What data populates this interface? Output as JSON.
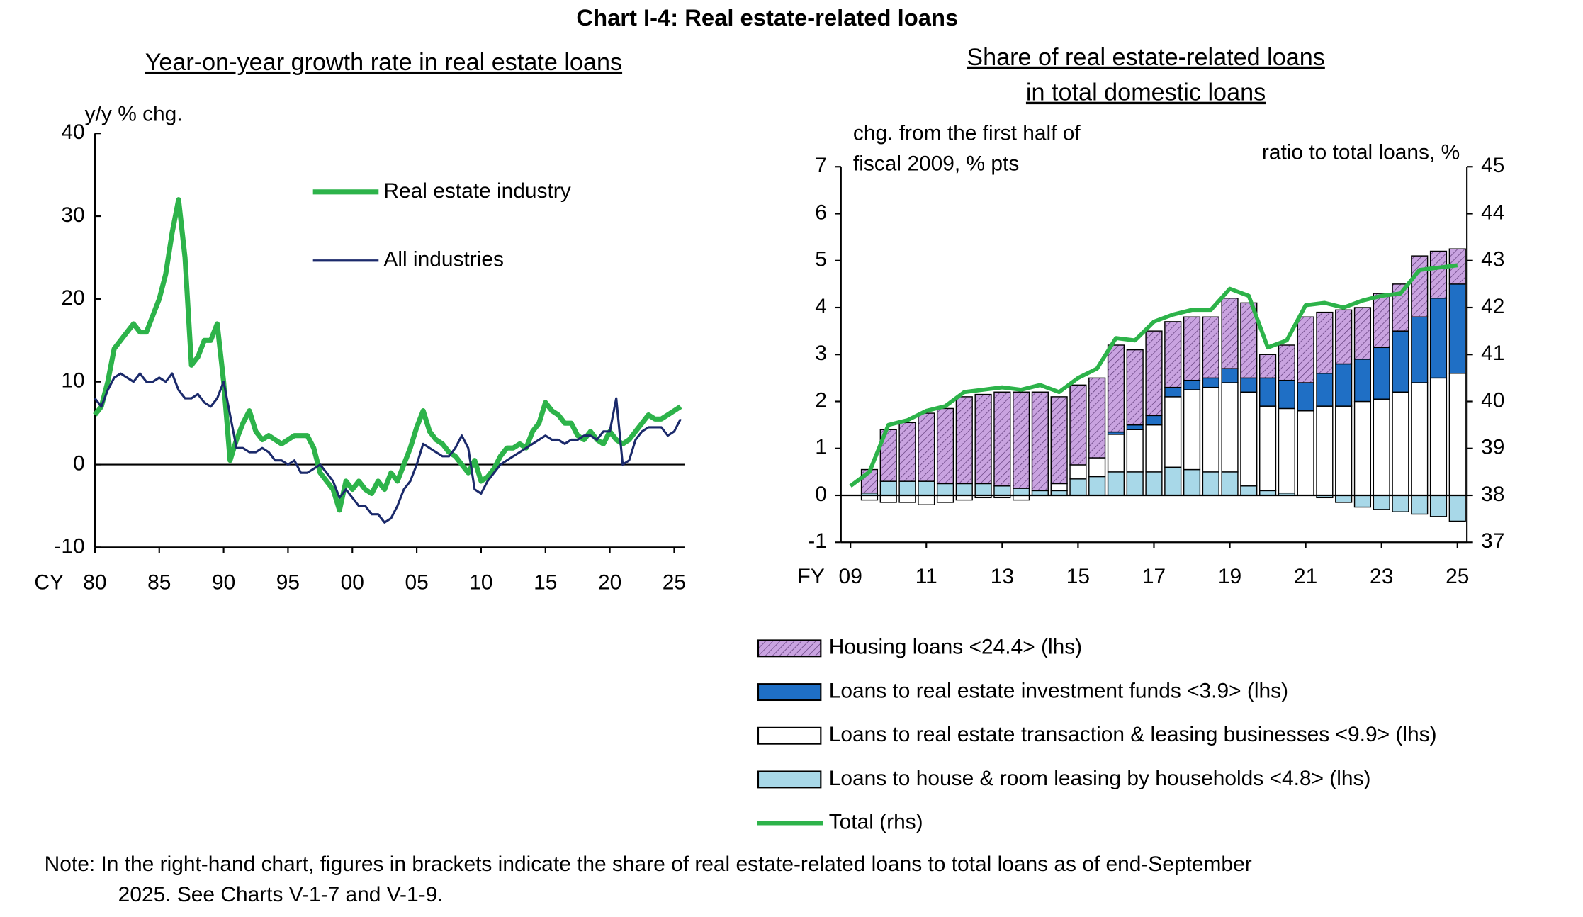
{
  "title": "Chart I-4: Real estate-related loans",
  "note": [
    "Note: In the right-hand chart, figures in brackets indicate the share of real estate-related loans to total loans as of end-September",
    "2025. See Charts V-1-7 and V-1-9."
  ],
  "chart_data": [
    {
      "type": "line",
      "title": "Year-on-year growth rate in real estate loans",
      "y_label": "y/y % chg.",
      "x_label": "CY",
      "x": [
        1980,
        1980.5,
        1981,
        1981.5,
        1982,
        1982.5,
        1983,
        1983.5,
        1984,
        1984.5,
        1985,
        1985.5,
        1986,
        1986.5,
        1987,
        1987.5,
        1988,
        1988.5,
        1989,
        1989.5,
        1990,
        1990.5,
        1991,
        1991.5,
        1992,
        1992.5,
        1993,
        1993.5,
        1994,
        1994.5,
        1995,
        1995.5,
        1996,
        1996.5,
        1997,
        1997.5,
        1998,
        1998.5,
        1999,
        1999.5,
        2000,
        2000.5,
        2001,
        2001.5,
        2002,
        2002.5,
        2003,
        2003.5,
        2004,
        2004.5,
        2005,
        2005.5,
        2006,
        2006.5,
        2007,
        2007.5,
        2008,
        2008.5,
        2009,
        2009.5,
        2010,
        2010.5,
        2011,
        2011.5,
        2012,
        2012.5,
        2013,
        2013.5,
        2014,
        2014.5,
        2015,
        2015.5,
        2016,
        2016.5,
        2017,
        2017.5,
        2018,
        2018.5,
        2019,
        2019.5,
        2020,
        2020.5,
        2021,
        2021.5,
        2022,
        2022.5,
        2023,
        2023.5,
        2024,
        2024.5,
        2025,
        2025.5
      ],
      "series": [
        {
          "name": "Real estate industry",
          "color": "#2db34a",
          "width": 5,
          "values": [
            6,
            7,
            10,
            14,
            15,
            16,
            17,
            16,
            16,
            18,
            20,
            23,
            28,
            32,
            25,
            12,
            13,
            15,
            15,
            17,
            10,
            0.5,
            3,
            5,
            6.5,
            4,
            3,
            3.5,
            3,
            2.5,
            3,
            3.5,
            3.5,
            3.5,
            2,
            -1,
            -2,
            -3,
            -5.5,
            -2,
            -3,
            -2,
            -3,
            -3.5,
            -2,
            -3,
            -1,
            -2,
            0,
            2,
            4.5,
            6.5,
            4,
            3,
            2.5,
            1.5,
            1,
            0,
            -1,
            0.5,
            -2,
            -1.5,
            -0.5,
            1,
            2,
            2,
            2.5,
            2,
            4,
            5,
            7.5,
            6.5,
            6,
            5,
            5,
            3.5,
            3,
            4,
            3,
            2.5,
            4,
            3,
            2.5,
            3,
            4,
            5,
            6,
            5.5,
            5.5,
            6,
            6.5,
            7
          ]
        },
        {
          "name": "All industries",
          "color": "#1b2a6b",
          "width": 2.2,
          "values": [
            8,
            7,
            9,
            10.5,
            11,
            10.5,
            10,
            11,
            10,
            10,
            10.5,
            10,
            11,
            9,
            8,
            8,
            8.5,
            7.5,
            7,
            8,
            10,
            6,
            2,
            2,
            1.5,
            1.5,
            2,
            1.5,
            0.5,
            0.5,
            0,
            0.5,
            -1,
            -1,
            -0.5,
            0,
            -1,
            -2,
            -4,
            -3,
            -4,
            -5,
            -5,
            -6,
            -6,
            -7,
            -6.5,
            -5,
            -3,
            -2,
            0,
            2.5,
            2,
            1.5,
            1,
            1,
            2,
            3.5,
            2,
            -3,
            -3.5,
            -2,
            -1,
            0,
            0.5,
            1,
            1.5,
            2,
            2.5,
            3,
            3.5,
            3,
            3,
            2.5,
            3,
            3,
            3.5,
            3.5,
            3,
            4,
            4,
            8,
            0,
            0.5,
            3,
            4,
            4.5,
            4.5,
            4.5,
            3.5,
            4,
            5.5
          ]
        }
      ],
      "xlim": [
        1980,
        2025.8
      ],
      "xticks": [
        {
          "value": 1980,
          "label": "80"
        },
        {
          "value": 1985,
          "label": "85"
        },
        {
          "value": 1990,
          "label": "90"
        },
        {
          "value": 1995,
          "label": "95"
        },
        {
          "value": 2000,
          "label": "00"
        },
        {
          "value": 2005,
          "label": "05"
        },
        {
          "value": 2010,
          "label": "10"
        },
        {
          "value": 2015,
          "label": "15"
        },
        {
          "value": 2020,
          "label": "20"
        },
        {
          "value": 2025,
          "label": "25"
        }
      ],
      "ylim": [
        -10,
        40
      ],
      "yticks": [
        -10,
        0,
        10,
        20,
        30,
        40
      ],
      "zero_line": true,
      "legend": "upper center"
    },
    {
      "type": "bar",
      "stacked": true,
      "title": [
        "Share of real estate-related loans",
        "in total domestic loans"
      ],
      "y_label": [
        "chg. from the first half of",
        "fiscal 2009, % pts"
      ],
      "y2_label": "ratio to total loans, %",
      "x_label": "FY",
      "categories": [
        "09",
        null,
        null,
        null,
        "11",
        null,
        null,
        null,
        "13",
        null,
        null,
        null,
        "15",
        null,
        null,
        null,
        "17",
        null,
        null,
        null,
        "19",
        null,
        null,
        null,
        "21",
        null,
        null,
        null,
        "23",
        null,
        null,
        null,
        "25"
      ],
      "series": [
        {
          "name": "Loans to house & room leasing by households <4.8> (lhs)",
          "color": "#a8d8e8",
          "values": [
            0,
            0.05,
            0.3,
            0.3,
            0.3,
            0.25,
            0.25,
            0.25,
            0.2,
            0.15,
            0.1,
            0.1,
            0.35,
            0.4,
            0.5,
            0.5,
            0.5,
            0.6,
            0.55,
            0.5,
            0.5,
            0.2,
            0.1,
            0.05,
            0,
            -0.05,
            -0.15,
            -0.25,
            -0.3,
            -0.35,
            -0.4,
            -0.45,
            -0.55
          ]
        },
        {
          "name": "Loans to real estate transaction & leasing businesses <9.9> (lhs)",
          "color": "#ffffff",
          "values": [
            0,
            -0.1,
            -0.15,
            -0.15,
            -0.2,
            -0.15,
            -0.1,
            -0.05,
            -0.05,
            -0.1,
            0,
            0.15,
            0.3,
            0.4,
            0.8,
            0.9,
            1.0,
            1.5,
            1.7,
            1.8,
            1.9,
            2.0,
            1.8,
            1.8,
            1.8,
            1.9,
            1.9,
            2.0,
            2.05,
            2.2,
            2.4,
            2.5,
            2.6
          ]
        },
        {
          "name": "Loans to real estate investment funds <3.9> (lhs)",
          "color": "#1f6fc5",
          "values": [
            0,
            0,
            0,
            0,
            0,
            0,
            0,
            0,
            0,
            0,
            0,
            0,
            0,
            0,
            0.05,
            0.1,
            0.2,
            0.2,
            0.2,
            0.2,
            0.3,
            0.3,
            0.6,
            0.6,
            0.6,
            0.7,
            0.9,
            0.9,
            1.1,
            1.3,
            1.4,
            1.7,
            1.9
          ]
        },
        {
          "name": "Housing loans <24.4> (lhs)",
          "color": "#c9a3e0",
          "pattern": "hatch",
          "values": [
            0,
            0.5,
            1.1,
            1.25,
            1.45,
            1.6,
            1.85,
            1.9,
            2.0,
            2.05,
            2.1,
            1.85,
            1.7,
            1.7,
            1.85,
            1.6,
            1.8,
            1.4,
            1.35,
            1.3,
            1.5,
            1.6,
            0.5,
            0.75,
            1.4,
            1.3,
            1.15,
            1.1,
            1.15,
            1.0,
            1.3,
            1.0,
            0.75
          ]
        },
        {
          "name": "Total (rhs)",
          "color": "#2db34a",
          "type": "line",
          "axis": "y2",
          "values": [
            38.2,
            38.5,
            39.5,
            39.6,
            39.8,
            39.9,
            40.2,
            40.25,
            40.3,
            40.25,
            40.35,
            40.2,
            40.5,
            40.7,
            41.35,
            41.3,
            41.7,
            41.85,
            41.95,
            41.95,
            42.4,
            42.25,
            41.15,
            41.3,
            42.05,
            42.1,
            42.0,
            42.15,
            42.25,
            42.3,
            42.8,
            42.85,
            42.9
          ]
        }
      ],
      "ylim": [
        -1,
        7
      ],
      "yticks": [
        -1,
        0,
        1,
        2,
        3,
        4,
        5,
        6,
        7
      ],
      "y2lim": [
        37,
        45
      ],
      "y2ticks": [
        37,
        38,
        39,
        40,
        41,
        42,
        43,
        44,
        45
      ],
      "zero_line": true,
      "legend": "bottom"
    }
  ]
}
